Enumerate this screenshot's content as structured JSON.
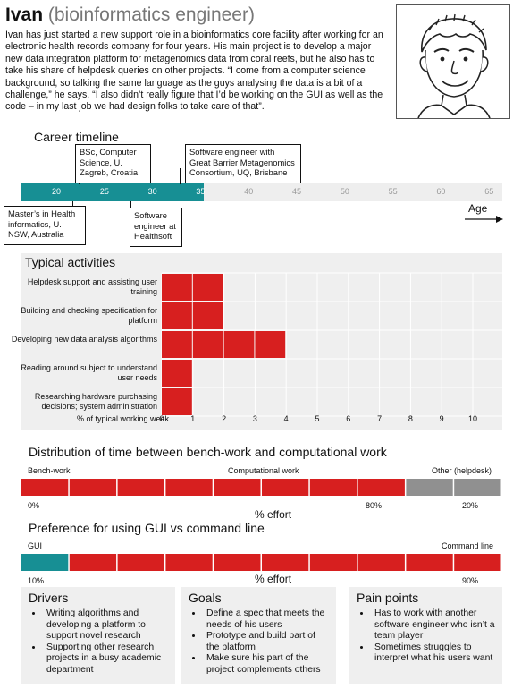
{
  "profile": {
    "name": "Ivan",
    "role": "(bioinformatics engineer)",
    "bio": "Ivan has just started a new support role in a bioinformatics core facility after working for an electronic health records company for four years. His main project is to develop a major new data integration platform for metagenomics data from coral reefs, but he also has to take his share of helpdesk queries on other projects. “I come from a computer science background, so talking the same language as the guys analysing the data is a bit of a challenge,” he says. “I also didn’t really figure that I’d be working on the GUI as well as the code – in my last job we had design folks to take care of that”.",
    "portrait_icon": "cartoon-portrait"
  },
  "timeline": {
    "heading": "Career timeline",
    "axis_label": "Age",
    "ticks": [
      "20",
      "25",
      "30",
      "35",
      "40",
      "45",
      "50",
      "55",
      "60",
      "65"
    ],
    "range": [
      16,
      66
    ],
    "current_age": 35,
    "events": [
      {
        "id": "bsc",
        "label": "BSc, Computer Science, U. Zagreb, Croatia",
        "age": 23
      },
      {
        "id": "masters",
        "label": "Master’s in Health informatics, U. NSW, Australia",
        "age": 22
      },
      {
        "id": "healthsoft",
        "label": "Software engineer at Healthsoft",
        "age": 30.5
      },
      {
        "id": "gbmc",
        "label": "Software engineer with Great Barrier Metagenomics Consortium, UQ, Brisbane",
        "age": 31.5
      }
    ],
    "fill_color": "#178f94",
    "empty_color": "#eeeeee"
  },
  "activities": {
    "heading": "Typical activities",
    "xlabel": "% of typical working week",
    "ticks": [
      "0",
      "1",
      "2",
      "3",
      "4",
      "5",
      "6",
      "7",
      "8",
      "9",
      "10"
    ],
    "items": [
      {
        "label": "Helpdesk support and assisting user training",
        "value": 2
      },
      {
        "label": "Building and checking specification for platform",
        "value": 2
      },
      {
        "label": "Developing new data analysis algorithms",
        "value": 4
      },
      {
        "label": "Reading around subject to understand user needs",
        "value": 1
      },
      {
        "label": "Researching hardware purchasing decisions; system administration",
        "value": 1
      }
    ],
    "bar_color": "#d71f1f"
  },
  "distribution": {
    "heading": "Distribution of time between bench-work and computational work",
    "left_label": "Bench-work",
    "mid_label": "Computational work",
    "right_label": "Other (helpdesk)",
    "bench_pct": 0,
    "comp_pct": 80,
    "other_pct": 20,
    "pct_bench": "0%",
    "pct_comp": "80%",
    "pct_other": "20%",
    "axis": "% effort",
    "comp_color": "#d71f1f",
    "other_color": "#909090"
  },
  "preference": {
    "heading": "Preference for using GUI vs command line",
    "left_label": "GUI",
    "right_label": "Command line",
    "gui_pct": 10,
    "cli_pct": 90,
    "pct_gui": "10%",
    "pct_cli": "90%",
    "axis": "% effort",
    "gui_color": "#178f94",
    "cli_color": "#d71f1f"
  },
  "drivers": {
    "title": "Drivers",
    "items": [
      "Writing algorithms and developing a platform to support novel research",
      "Supporting other research projects in a busy academic department"
    ]
  },
  "goals": {
    "title": "Goals",
    "items": [
      "Define a spec that meets the needs of his users",
      "Prototype and build part of the platform",
      "Make sure his part of the project complements others"
    ]
  },
  "pains": {
    "title": "Pain points",
    "items": [
      "Has to work with another software engineer who isn’t a team player",
      "Sometimes struggles to interpret what his users want"
    ]
  }
}
